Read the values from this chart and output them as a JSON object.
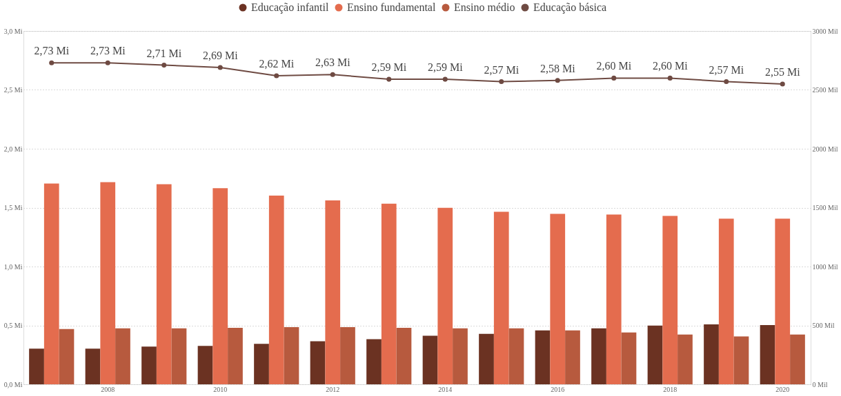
{
  "chart_data": {
    "type": "bar",
    "categories": [
      null,
      "2008",
      null,
      "2010",
      null,
      "2012",
      null,
      "2014",
      null,
      "2016",
      null,
      "2018",
      null,
      "2020"
    ],
    "series": [
      {
        "name": "Educação infantil",
        "axis": "y2",
        "color": "#6b3222",
        "values": [
          303,
          303,
          320,
          326,
          343,
          366,
          383,
          412,
          429,
          458,
          475,
          498,
          509,
          503
        ]
      },
      {
        "name": "Ensino fundamental",
        "axis": "y2",
        "color": "#e46c4e",
        "values": [
          1705,
          1716,
          1699,
          1665,
          1602,
          1562,
          1533,
          1499,
          1465,
          1447,
          1442,
          1430,
          1407,
          1407
        ]
      },
      {
        "name": "Ensino médio",
        "axis": "y2",
        "color": "#b75a3e",
        "values": [
          469,
          475,
          475,
          480,
          486,
          486,
          480,
          475,
          475,
          458,
          440,
          423,
          406,
          423
        ]
      },
      {
        "name": "Educação básica",
        "type": "line",
        "axis": "y",
        "color": "#6e4a42",
        "marker": "circle",
        "values": [
          2.73,
          2.73,
          2.71,
          2.69,
          2.62,
          2.63,
          2.59,
          2.59,
          2.57,
          2.58,
          2.6,
          2.6,
          2.57,
          2.55
        ],
        "value_labels": [
          "2,73 Mi",
          "2,73 Mi",
          "2,71 Mi",
          "2,69 Mi",
          "2,62 Mi",
          "2,63 Mi",
          "2,59 Mi",
          "2,59 Mi",
          "2,57 Mi",
          "2,58 Mi",
          "2,60 Mi",
          "2,60 Mi",
          "2,57 Mi",
          "2,55 Mi"
        ]
      }
    ],
    "ylim": [
      0,
      3.0
    ],
    "yticks": [
      {
        "value": 0,
        "label": "0,0 Mi"
      },
      {
        "value": 0.5,
        "label": "0,5 Mi"
      },
      {
        "value": 1.0,
        "label": "1,0 Mi"
      },
      {
        "value": 1.5,
        "label": "1,5 Mi"
      },
      {
        "value": 2.0,
        "label": "2,0 Mi"
      },
      {
        "value": 2.5,
        "label": "2,5 Mi"
      },
      {
        "value": 3.0,
        "label": "3,0 Mi"
      }
    ],
    "y2lim": [
      0,
      3000
    ],
    "y2ticks": [
      {
        "value": 0,
        "label": "0 Mil"
      },
      {
        "value": 500,
        "label": "500 Mil"
      },
      {
        "value": 1000,
        "label": "1000 Mil"
      },
      {
        "value": 1500,
        "label": "1500 Mil"
      },
      {
        "value": 2000,
        "label": "2000 Mil"
      },
      {
        "value": 2500,
        "label": "2500 Mil"
      },
      {
        "value": 3000,
        "label": "3000 Mil"
      }
    ],
    "grid": "y",
    "legend": "top"
  }
}
